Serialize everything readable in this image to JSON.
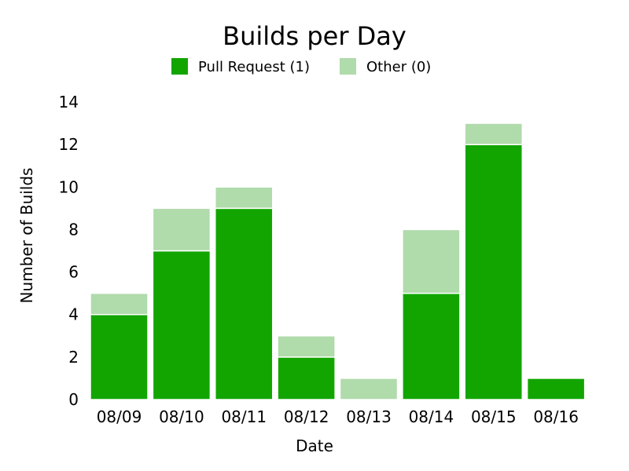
{
  "chart_data": {
    "type": "bar",
    "stacked": true,
    "title": "Builds per Day",
    "xlabel": "Date",
    "ylabel": "Number of Builds",
    "ylim": [
      0,
      14
    ],
    "yticks": [
      "0",
      "2",
      "4",
      "6",
      "8",
      "10",
      "12",
      "14"
    ],
    "categories": [
      "08/09",
      "08/10",
      "08/11",
      "08/12",
      "08/13",
      "08/14",
      "08/15",
      "08/16"
    ],
    "series": [
      {
        "name": "Pull Request (1)",
        "color": "#12a500",
        "values": [
          4,
          7,
          9,
          2,
          0,
          5,
          12,
          1
        ]
      },
      {
        "name": "Other (0)",
        "color": "#b0dbab",
        "values": [
          1,
          2,
          1,
          1,
          1,
          3,
          1,
          0
        ]
      }
    ],
    "grid": false,
    "legend": "top-center"
  }
}
